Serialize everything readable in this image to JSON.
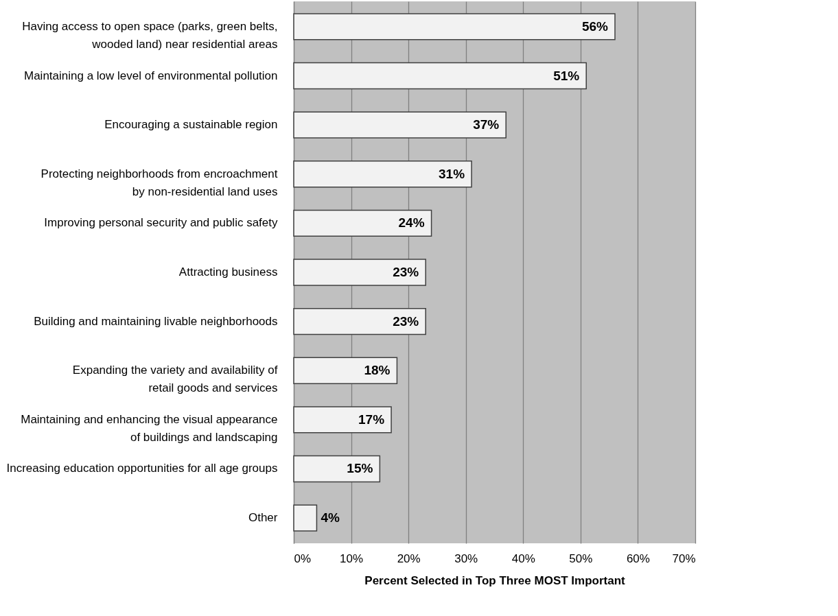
{
  "chart_data": {
    "type": "bar",
    "orientation": "horizontal",
    "xlabel": "Percent Selected in Top Three MOST Important",
    "categories": [
      "Having access to open space (parks, green belts, wooded land) near residential areas",
      "Maintaining a low level of environmental pollution",
      "Encouraging a sustainable region",
      "Protecting neighborhoods from encroachment by non-residential land uses",
      "Improving personal security and public safety",
      "Attracting business",
      "Building and maintaining livable neighborhoods",
      "Expanding the variety and availability of retail goods and services",
      "Maintaining and enhancing the visual appearance of buildings and landscaping",
      "Increasing education opportunities for all age groups",
      "Other"
    ],
    "values": [
      56,
      51,
      37,
      31,
      24,
      23,
      23,
      18,
      17,
      15,
      4
    ],
    "value_labels": [
      "56%",
      "51%",
      "37%",
      "31%",
      "24%",
      "23%",
      "23%",
      "18%",
      "17%",
      "15%",
      "4%"
    ],
    "color": "#f2f2f2",
    "xlim": [
      0,
      70
    ],
    "xticks": [
      {
        "value": 0,
        "label": "0%"
      },
      {
        "value": 10,
        "label": "10%"
      },
      {
        "value": 20,
        "label": "20%"
      },
      {
        "value": 30,
        "label": "30%"
      },
      {
        "value": 40,
        "label": "40%"
      },
      {
        "value": 50,
        "label": "50%"
      },
      {
        "value": 60,
        "label": "60%"
      },
      {
        "value": 70,
        "label": "70%"
      }
    ],
    "grid": "x"
  }
}
